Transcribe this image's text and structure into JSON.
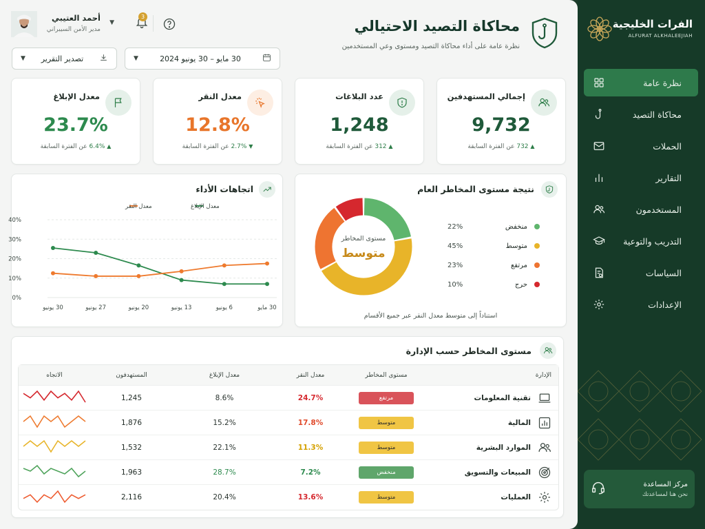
{
  "brand": {
    "name_ar": "الفرات الخليجية",
    "name_en": "ALFURAT ALKHALEEJIAH"
  },
  "nav": {
    "items": [
      {
        "label": "نظرة عامة",
        "icon": "grid-icon",
        "active": true
      },
      {
        "label": "محاكاة التصيد",
        "icon": "hook-icon",
        "active": false
      },
      {
        "label": "الحملات",
        "icon": "mail-icon",
        "active": false
      },
      {
        "label": "التقارير",
        "icon": "bar-chart-icon",
        "active": false
      },
      {
        "label": "المستخدمون",
        "icon": "users-icon",
        "active": false
      },
      {
        "label": "التدريب والتوعية",
        "icon": "graduation-cap-icon",
        "active": false
      },
      {
        "label": "السياسات",
        "icon": "policy-doc-icon",
        "active": false
      },
      {
        "label": "الإعدادات",
        "icon": "gear-icon",
        "active": false
      }
    ],
    "help": {
      "title": "مركز المساعدة",
      "subtitle": "نحن هنا لمساعدتك",
      "icon": "headset-icon"
    }
  },
  "header": {
    "title": "محاكاة التصيد الاحتيالي",
    "subtitle": "نظرة عامة على أداء محاكاة التصيد ومستوى وعي المستخدمين",
    "date_range": "30 مايو – 30 يونيو 2024",
    "export_label": "تصدير التقرير",
    "user": {
      "name": "أحمد العتيبي",
      "role": "مدير الأمن السيبراني"
    },
    "notifications": "3"
  },
  "kpis": [
    {
      "title": "إجمالي المستهدفين",
      "value": "9,732",
      "delta": "732",
      "delta_dir": "up",
      "suffix": "عن الفترة السابقة",
      "icon": "users-icon",
      "color": "#1f5a3a",
      "icon_bg": "#e5f0e9",
      "icon_stroke": "#2d7d48"
    },
    {
      "title": "عدد البلاغات",
      "value": "1,248",
      "delta": "312",
      "delta_dir": "up",
      "suffix": "عن الفترة السابقة",
      "icon": "shield-alert-icon",
      "color": "#1f5a3a",
      "icon_bg": "#e5f0e9",
      "icon_stroke": "#2d7d48"
    },
    {
      "title": "معدل النقر",
      "value": "12.8%",
      "delta": "2.7%",
      "delta_dir": "down",
      "suffix": "عن الفترة السابقة",
      "icon": "cursor-click-icon",
      "color": "#e8752a",
      "icon_bg": "#fdeee3",
      "icon_stroke": "#e8752a"
    },
    {
      "title": "معدل الإبلاغ",
      "value": "23.7%",
      "delta": "6.4%",
      "delta_dir": "up",
      "suffix": "عن الفترة السابقة",
      "icon": "flag-icon",
      "color": "#2d8a4e",
      "icon_bg": "#e5f0e9",
      "icon_stroke": "#2d7d48"
    }
  ],
  "risk": {
    "title": "نتيجة مستوى المخاطر العام",
    "center_label": "مستوى المخاطر",
    "center_value": "متوسط",
    "note": "استناداً إلى متوسط معدل النقر عبر جميع الأقسام",
    "levels": [
      {
        "name": "منخفض",
        "pct": "22%",
        "value": 22,
        "color": "#5fb56d"
      },
      {
        "name": "متوسط",
        "pct": "45%",
        "value": 45,
        "color": "#e8b429"
      },
      {
        "name": "مرتفع",
        "pct": "23%",
        "value": 23,
        "color": "#ee7431"
      },
      {
        "name": "حرج",
        "pct": "10%",
        "value": 10,
        "color": "#d5282e"
      }
    ]
  },
  "chart_data": {
    "type": "line",
    "title": "اتجاهات الأداء",
    "x": [
      "30 مايو",
      "6 يونيو",
      "13 يونيو",
      "20 يونيو",
      "27 يونيو",
      "30 يونيو"
    ],
    "y_ticks": [
      "0%",
      "10%",
      "20%",
      "30%",
      "40%"
    ],
    "ylim": [
      0,
      40
    ],
    "grid": true,
    "legend": "top",
    "series": [
      {
        "name": "معدل الإبلاغ",
        "color": "#2d8a4e",
        "values": [
          7,
          7,
          9,
          16.5,
          23,
          25.5
        ]
      },
      {
        "name": "معدل النقر",
        "color": "#ee7a2e",
        "values": [
          17.5,
          16.5,
          13.5,
          11,
          11,
          12.5
        ]
      }
    ]
  },
  "departments": {
    "title": "مستوى المخاطر حسب الإدارة",
    "columns": [
      "الإدارة",
      "مستوى المخاطر",
      "معدل النقر",
      "معدل الإبلاغ",
      "المستهدفون",
      "الاتجاه"
    ],
    "rows": [
      {
        "name": "تقنية المعلومات",
        "icon": "laptop-icon",
        "risk": "مرتفع",
        "risk_bg": "#d9535a",
        "click": "24.7%",
        "click_color": "#d5282e",
        "report": "8.6%",
        "report_color": "#2b3530",
        "targets": "1,245",
        "trend_color": "#d5282e",
        "trend": [
          5,
          3,
          6,
          2,
          6,
          3,
          5,
          2,
          6,
          1
        ]
      },
      {
        "name": "المالية",
        "icon": "finance-chart-icon",
        "risk": "متوسط",
        "risk_bg": "#f0c544",
        "click": "17.8%",
        "click_color": "#e04a2b",
        "report": "15.2%",
        "report_color": "#2b3530",
        "targets": "1,876",
        "trend_color": "#ee7a2e",
        "trend": [
          4,
          5,
          3,
          5,
          4,
          5,
          3,
          4,
          5,
          4
        ]
      },
      {
        "name": "الموارد البشرية",
        "icon": "users-icon",
        "risk": "متوسط",
        "risk_bg": "#f0c544",
        "click": "11.3%",
        "click_color": "#d4a000",
        "report": "22.1%",
        "report_color": "#2b3530",
        "targets": "1,532",
        "trend_color": "#e8b429",
        "trend": [
          4,
          5,
          4,
          5,
          3,
          5,
          4,
          5,
          4,
          5
        ]
      },
      {
        "name": "المبيعات والتسويق",
        "icon": "target-icon",
        "risk": "منخفض",
        "risk_bg": "#5fa66b",
        "click": "7.2%",
        "click_color": "#2d8a4e",
        "report": "28.7%",
        "report_color": "#2d8a4e",
        "targets": "1,963",
        "trend_color": "#4ea35b",
        "trend": [
          5,
          4,
          6,
          3,
          5,
          4,
          3,
          5,
          2,
          4
        ]
      },
      {
        "name": "العمليات",
        "icon": "gear-icon",
        "risk": "متوسط",
        "risk_bg": "#f0c544",
        "click": "13.6%",
        "click_color": "#d5282e",
        "report": "20.4%",
        "report_color": "#2b3530",
        "targets": "2,116",
        "trend_color": "#ee5a2e",
        "trend": [
          4,
          5,
          3,
          5,
          4,
          6,
          3,
          5,
          4,
          5
        ]
      }
    ]
  }
}
